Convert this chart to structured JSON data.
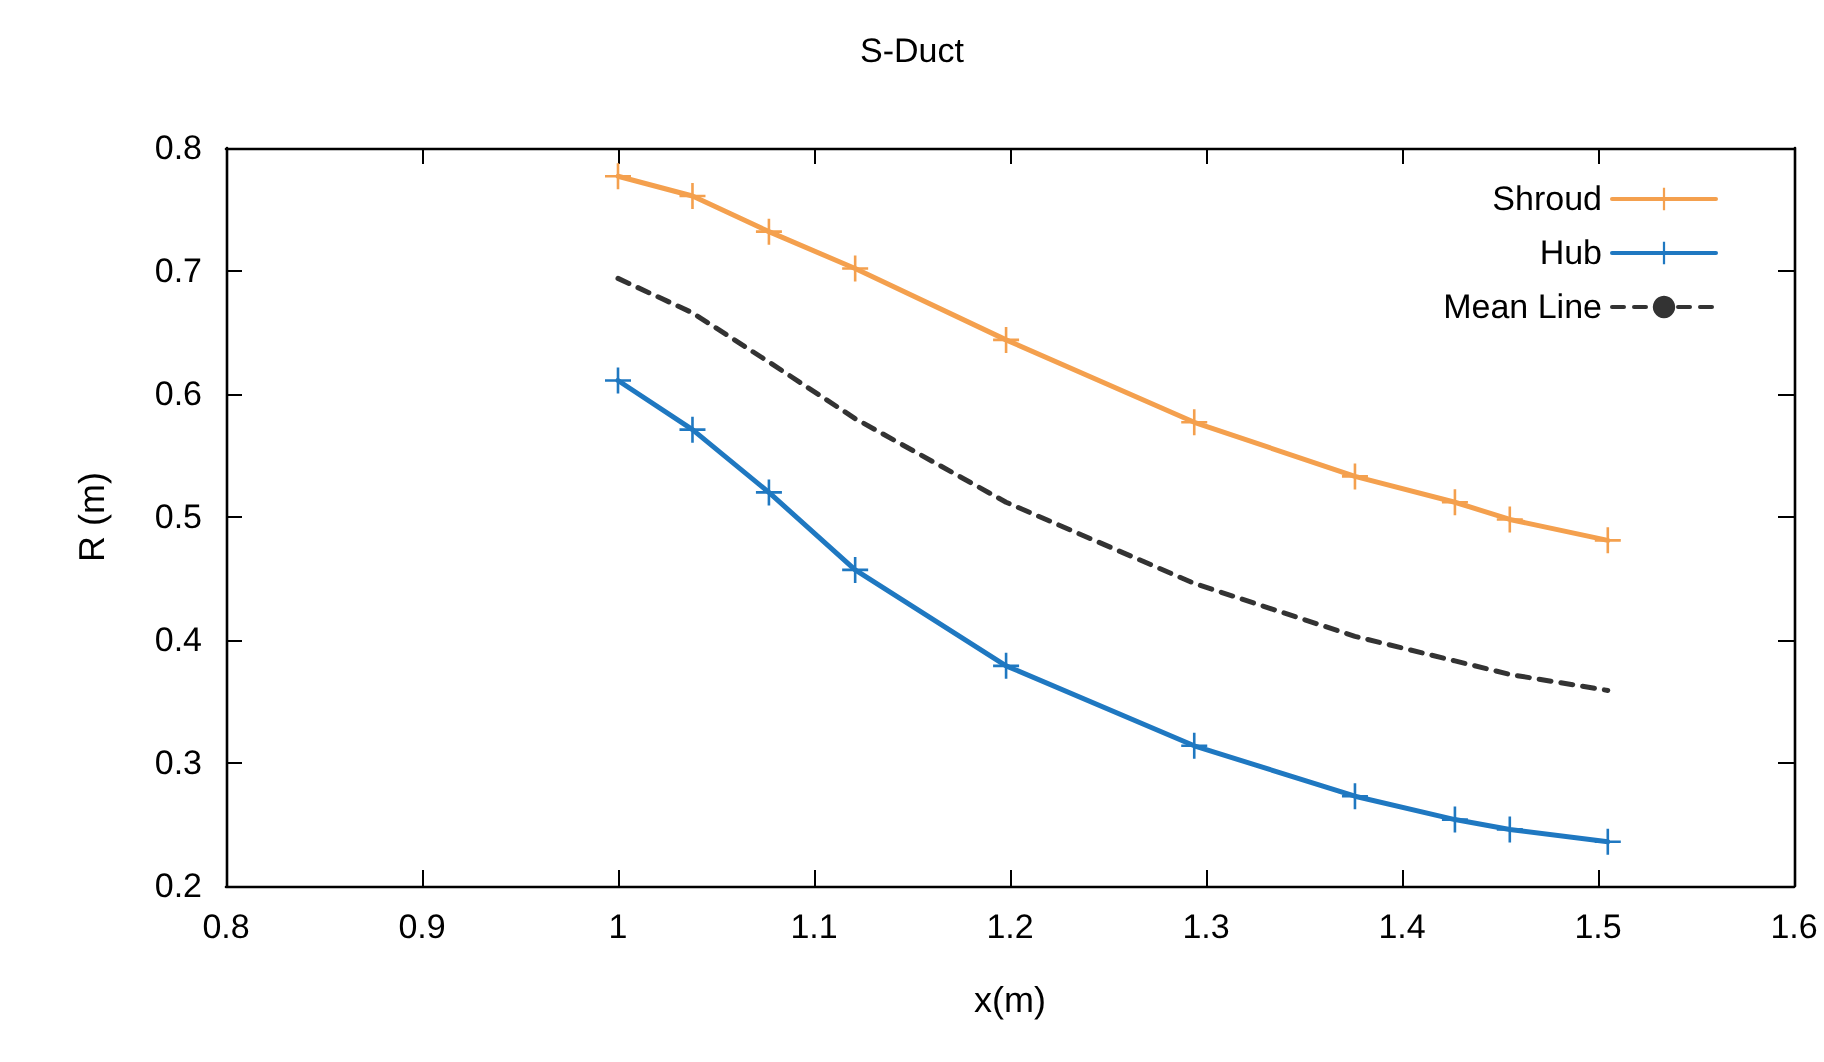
{
  "chart_data": {
    "type": "line",
    "title": "S-Duct",
    "xlabel": "x(m)",
    "ylabel": "R (m)",
    "x": [
      1.0,
      1.038,
      1.077,
      1.121,
      1.198,
      1.294,
      1.376,
      1.427,
      1.455,
      1.505
    ],
    "series": [
      {
        "name": "Shroud",
        "color": "#f4a04e",
        "marker": "cross",
        "line_style": "solid",
        "values": [
          0.777,
          0.761,
          0.732,
          0.702,
          0.644,
          0.577,
          0.533,
          0.512,
          0.498,
          0.481
        ]
      },
      {
        "name": "Hub",
        "color": "#1f78c1",
        "marker": "cross",
        "line_style": "solid",
        "values": [
          0.611,
          0.571,
          0.52,
          0.457,
          0.379,
          0.314,
          0.273,
          0.254,
          0.246,
          0.236
        ]
      },
      {
        "name": "Mean Line",
        "color": "#333333",
        "marker": "none",
        "line_style": "dashed",
        "values": [
          0.694,
          0.666,
          0.626,
          0.58,
          0.512,
          0.446,
          0.403,
          0.383,
          0.372,
          0.359
        ]
      }
    ],
    "xlim": [
      0.8,
      1.6
    ],
    "xticks": [
      0.8,
      0.9,
      1,
      1.1,
      1.2,
      1.3,
      1.4,
      1.5,
      1.6
    ],
    "ylim": [
      0.2,
      0.8
    ],
    "yticks": [
      0.2,
      0.3,
      0.4,
      0.5,
      0.6,
      0.7,
      0.8
    ],
    "grid": false,
    "legend": "top right"
  }
}
